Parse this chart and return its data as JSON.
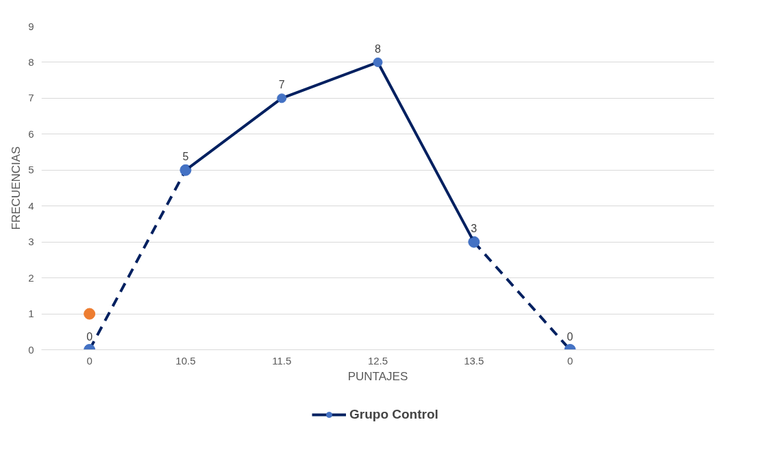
{
  "chart_data": {
    "type": "line",
    "xlabel": "PUNTAJES",
    "ylabel": "FRECUENCIAS",
    "categories": [
      "0",
      "10.5",
      "11.5",
      "12.5",
      "13.5",
      "0",
      null
    ],
    "ylim": [
      0,
      9
    ],
    "yticks": [
      0,
      1,
      2,
      3,
      4,
      5,
      6,
      7,
      8,
      9
    ],
    "grid": "y",
    "legend": "bottom",
    "marker": "circle",
    "series": [
      {
        "name": "Grupo Control",
        "color": "#002060",
        "colors": [
          "#4472c4",
          "#4472c4",
          "#4472c4",
          "#4472c4",
          "#4472c4",
          "#4472c4",
          "#4472c4"
        ],
        "line_style": "solid",
        "values": [
          null,
          5,
          7,
          8,
          3,
          null,
          null
        ],
        "value_labels": [
          null,
          "5",
          "7",
          "8",
          "3",
          null,
          null
        ]
      },
      {
        "color": "#002060",
        "colors": [
          "#4472c4",
          "#4472c4",
          "#4472c4",
          "#4472c4",
          "#4472c4",
          "#4472c4",
          "#4472c4"
        ],
        "line_style": "dashed",
        "values": [
          0,
          5,
          null,
          null,
          3,
          0,
          null
        ],
        "value_labels": [
          "0",
          null,
          null,
          null,
          null,
          "0",
          null
        ]
      },
      {
        "type": "scatter",
        "color": "#ed7d31",
        "values": [
          1,
          null,
          null,
          null,
          null,
          null,
          null
        ]
      }
    ]
  }
}
